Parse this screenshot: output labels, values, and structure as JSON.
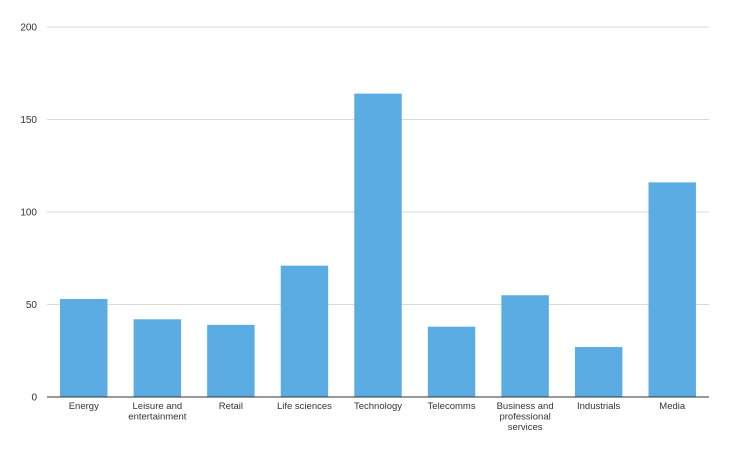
{
  "chart_data": {
    "type": "bar",
    "categories": [
      "Energy",
      "Leisure and entertainment",
      "Retail",
      "Life sciences",
      "Technology",
      "Telecomms",
      "Business and professional services",
      "Industrials",
      "Media"
    ],
    "category_label_lines": [
      [
        "Energy"
      ],
      [
        "Leisure and",
        "entertainment"
      ],
      [
        "Retail"
      ],
      [
        "Life sciences"
      ],
      [
        "Technology"
      ],
      [
        "Telecomms"
      ],
      [
        "Business and",
        "professional",
        "services"
      ],
      [
        "Industrials"
      ],
      [
        "Media"
      ]
    ],
    "values": [
      53,
      42,
      39,
      71,
      164,
      38,
      55,
      27,
      116
    ],
    "ylim": [
      0,
      200
    ],
    "yticks": [
      0,
      50,
      100,
      150,
      200
    ],
    "grid": true,
    "legend": "none",
    "bar_color": "#5aace2",
    "title": "",
    "xlabel": "",
    "ylabel": ""
  }
}
